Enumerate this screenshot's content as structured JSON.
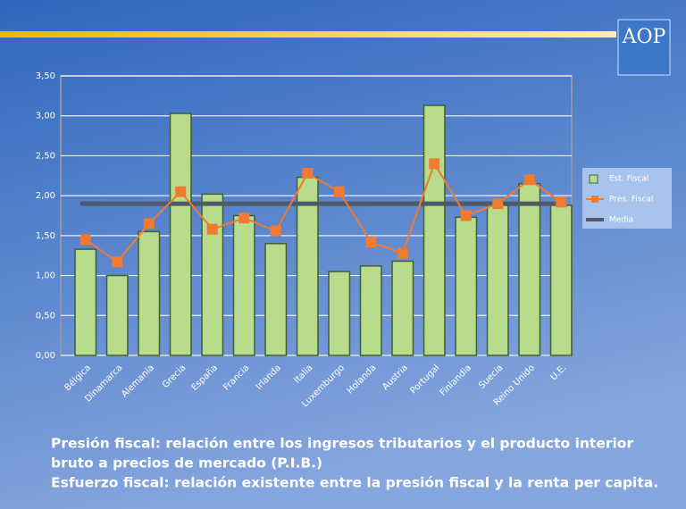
{
  "chart_data": {
    "type": "bar_line",
    "categories": [
      "Bélgica",
      "Dinamarca",
      "Alemania",
      "Grecia",
      "España",
      "Francia",
      "Irlanda",
      "Italia",
      "Luxemburgo",
      "Holanda",
      "Austria",
      "Portugal",
      "Finlandia",
      "Suecia",
      "Reino Unido",
      "U.E."
    ],
    "series": [
      {
        "name": "Est. Fiscal",
        "kind": "bar",
        "color": "#b8dc8c",
        "values": [
          1.33,
          1.0,
          1.55,
          3.03,
          2.02,
          1.75,
          1.4,
          2.23,
          1.05,
          1.12,
          1.18,
          3.13,
          1.73,
          1.88,
          2.15,
          1.88
        ]
      },
      {
        "name": "Pres. Fiscal",
        "kind": "line",
        "color": "#f07a30",
        "values": [
          1.45,
          1.17,
          1.65,
          2.05,
          1.58,
          1.72,
          1.56,
          2.28,
          2.05,
          1.42,
          1.28,
          2.4,
          1.75,
          1.9,
          2.2,
          1.92
        ]
      }
    ],
    "media": {
      "name": "Media",
      "color": "#4f5a66",
      "value": 1.9
    },
    "ylim": [
      0,
      3.5
    ],
    "yticks": [
      {
        "value": 0,
        "label": "0,00"
      },
      {
        "value": 0.5,
        "label": "0,50"
      },
      {
        "value": 1,
        "label": "1,00"
      },
      {
        "value": 1.5,
        "label": "1,50"
      },
      {
        "value": 2,
        "label": "2,00"
      },
      {
        "value": 2.5,
        "label": "2,50"
      },
      {
        "value": 3,
        "label": "3,00"
      },
      {
        "value": 3.5,
        "label": "3,50"
      }
    ],
    "grid": true,
    "legend": "right",
    "logo": "AOP",
    "caption": [
      "Presión fiscal: relación entre los ingresos tributarios y el producto interior",
      "bruto a precios de mercado (P.I.B.)",
      "Esfuerzo fiscal: relación existente entre la presión fiscal y la renta per capita."
    ]
  }
}
